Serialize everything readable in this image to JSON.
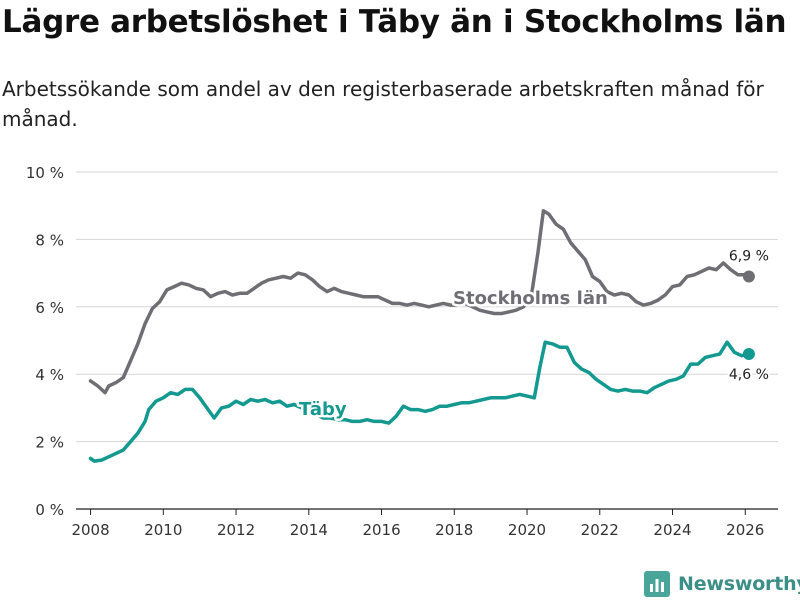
{
  "title": "Lägre arbetslöshet i Täby än i Stockholms län",
  "subtitle": "Arbetssökande som andel av den registerbaserade arbetskraften månad för månad.",
  "logo": {
    "text": "Newsworthy",
    "icon": "bar-chart-icon"
  },
  "colors": {
    "stockholm": "#6e6e74",
    "taby": "#13998f",
    "grid": "#d6d6d6",
    "axis": "#222222"
  },
  "chart_data": {
    "type": "line",
    "ylim": [
      0,
      10
    ],
    "xlim": [
      2007.6,
      2026.9
    ],
    "y_ticks": [
      0,
      2,
      4,
      6,
      8,
      10
    ],
    "y_tick_labels": [
      "0 %",
      "2 %",
      "4 %",
      "6 %",
      "8 %",
      "10 %"
    ],
    "x_ticks": [
      2008,
      2010,
      2012,
      2014,
      2016,
      2018,
      2020,
      2022,
      2024,
      2026
    ],
    "x_tick_labels": [
      "2008",
      "2010",
      "2012",
      "2014",
      "2016",
      "2018",
      "2020",
      "2022",
      "2024",
      "2026"
    ],
    "grid": true,
    "series": [
      {
        "name": "Stockholms län",
        "label": "Stockholms län",
        "end_label": "6,9 %",
        "points": [
          [
            2008,
            3.8
          ],
          [
            2008.2,
            3.65
          ],
          [
            2008.4,
            3.45
          ],
          [
            2008.5,
            3.65
          ],
          [
            2008.7,
            3.75
          ],
          [
            2008.9,
            3.9
          ],
          [
            2009.1,
            4.4
          ],
          [
            2009.3,
            4.9
          ],
          [
            2009.5,
            5.5
          ],
          [
            2009.7,
            5.95
          ],
          [
            2009.9,
            6.15
          ],
          [
            2010.1,
            6.5
          ],
          [
            2010.3,
            6.6
          ],
          [
            2010.5,
            6.7
          ],
          [
            2010.7,
            6.65
          ],
          [
            2010.9,
            6.55
          ],
          [
            2011.1,
            6.5
          ],
          [
            2011.3,
            6.3
          ],
          [
            2011.5,
            6.4
          ],
          [
            2011.7,
            6.45
          ],
          [
            2011.9,
            6.35
          ],
          [
            2012.1,
            6.4
          ],
          [
            2012.3,
            6.4
          ],
          [
            2012.5,
            6.55
          ],
          [
            2012.7,
            6.7
          ],
          [
            2012.9,
            6.8
          ],
          [
            2013.1,
            6.85
          ],
          [
            2013.3,
            6.9
          ],
          [
            2013.5,
            6.85
          ],
          [
            2013.7,
            7.0
          ],
          [
            2013.9,
            6.95
          ],
          [
            2014.1,
            6.8
          ],
          [
            2014.3,
            6.6
          ],
          [
            2014.5,
            6.45
          ],
          [
            2014.7,
            6.55
          ],
          [
            2014.9,
            6.45
          ],
          [
            2015.1,
            6.4
          ],
          [
            2015.3,
            6.35
          ],
          [
            2015.5,
            6.3
          ],
          [
            2015.7,
            6.3
          ],
          [
            2015.9,
            6.3
          ],
          [
            2016.1,
            6.2
          ],
          [
            2016.3,
            6.1
          ],
          [
            2016.5,
            6.1
          ],
          [
            2016.7,
            6.05
          ],
          [
            2016.9,
            6.1
          ],
          [
            2017.1,
            6.05
          ],
          [
            2017.3,
            6.0
          ],
          [
            2017.5,
            6.05
          ],
          [
            2017.7,
            6.1
          ],
          [
            2017.9,
            6.05
          ],
          [
            2018.1,
            6.05
          ],
          [
            2018.3,
            6.1
          ],
          [
            2018.5,
            6.0
          ],
          [
            2018.7,
            5.9
          ],
          [
            2018.9,
            5.85
          ],
          [
            2019.1,
            5.8
          ],
          [
            2019.3,
            5.8
          ],
          [
            2019.5,
            5.85
          ],
          [
            2019.7,
            5.9
          ],
          [
            2019.9,
            6.0
          ],
          [
            2020.1,
            6.2
          ],
          [
            2020.3,
            7.6
          ],
          [
            2020.45,
            8.85
          ],
          [
            2020.6,
            8.75
          ],
          [
            2020.8,
            8.45
          ],
          [
            2021.0,
            8.3
          ],
          [
            2021.2,
            7.9
          ],
          [
            2021.4,
            7.65
          ],
          [
            2021.6,
            7.4
          ],
          [
            2021.8,
            6.9
          ],
          [
            2022.0,
            6.75
          ],
          [
            2022.2,
            6.45
          ],
          [
            2022.4,
            6.35
          ],
          [
            2022.6,
            6.4
          ],
          [
            2022.8,
            6.35
          ],
          [
            2023.0,
            6.15
          ],
          [
            2023.2,
            6.05
          ],
          [
            2023.4,
            6.1
          ],
          [
            2023.6,
            6.2
          ],
          [
            2023.8,
            6.35
          ],
          [
            2024.0,
            6.6
          ],
          [
            2024.2,
            6.65
          ],
          [
            2024.4,
            6.9
          ],
          [
            2024.6,
            6.95
          ],
          [
            2024.8,
            7.05
          ],
          [
            2025.0,
            7.15
          ],
          [
            2025.2,
            7.1
          ],
          [
            2025.4,
            7.3
          ],
          [
            2025.6,
            7.1
          ],
          [
            2025.8,
            6.95
          ],
          [
            2026.0,
            6.95
          ],
          [
            2026.1,
            6.9
          ]
        ]
      },
      {
        "name": "Täby",
        "label": "Täby",
        "end_label": "4,6 %",
        "points": [
          [
            2008,
            1.5
          ],
          [
            2008.1,
            1.42
          ],
          [
            2008.3,
            1.45
          ],
          [
            2008.5,
            1.55
          ],
          [
            2008.7,
            1.65
          ],
          [
            2008.9,
            1.75
          ],
          [
            2009.1,
            2.0
          ],
          [
            2009.3,
            2.25
          ],
          [
            2009.5,
            2.6
          ],
          [
            2009.6,
            2.95
          ],
          [
            2009.8,
            3.2
          ],
          [
            2010.0,
            3.3
          ],
          [
            2010.2,
            3.45
          ],
          [
            2010.4,
            3.4
          ],
          [
            2010.6,
            3.55
          ],
          [
            2010.8,
            3.55
          ],
          [
            2011.0,
            3.3
          ],
          [
            2011.2,
            3.0
          ],
          [
            2011.4,
            2.7
          ],
          [
            2011.6,
            3.0
          ],
          [
            2011.8,
            3.05
          ],
          [
            2012.0,
            3.2
          ],
          [
            2012.2,
            3.1
          ],
          [
            2012.4,
            3.25
          ],
          [
            2012.6,
            3.2
          ],
          [
            2012.8,
            3.25
          ],
          [
            2013.0,
            3.15
          ],
          [
            2013.2,
            3.2
          ],
          [
            2013.4,
            3.05
          ],
          [
            2013.6,
            3.1
          ],
          [
            2013.8,
            3.0
          ],
          [
            2014.0,
            2.85
          ],
          [
            2014.2,
            2.8
          ],
          [
            2014.4,
            2.7
          ],
          [
            2014.6,
            2.7
          ],
          [
            2014.8,
            2.65
          ],
          [
            2015.0,
            2.65
          ],
          [
            2015.2,
            2.6
          ],
          [
            2015.4,
            2.6
          ],
          [
            2015.6,
            2.65
          ],
          [
            2015.8,
            2.6
          ],
          [
            2016.0,
            2.6
          ],
          [
            2016.2,
            2.55
          ],
          [
            2016.4,
            2.75
          ],
          [
            2016.6,
            3.05
          ],
          [
            2016.8,
            2.95
          ],
          [
            2017.0,
            2.95
          ],
          [
            2017.2,
            2.9
          ],
          [
            2017.4,
            2.95
          ],
          [
            2017.6,
            3.05
          ],
          [
            2017.8,
            3.05
          ],
          [
            2018.0,
            3.1
          ],
          [
            2018.2,
            3.15
          ],
          [
            2018.4,
            3.15
          ],
          [
            2018.6,
            3.2
          ],
          [
            2018.8,
            3.25
          ],
          [
            2019.0,
            3.3
          ],
          [
            2019.2,
            3.3
          ],
          [
            2019.4,
            3.3
          ],
          [
            2019.6,
            3.35
          ],
          [
            2019.8,
            3.4
          ],
          [
            2020.0,
            3.35
          ],
          [
            2020.2,
            3.3
          ],
          [
            2020.35,
            4.2
          ],
          [
            2020.5,
            4.95
          ],
          [
            2020.7,
            4.9
          ],
          [
            2020.9,
            4.8
          ],
          [
            2021.1,
            4.8
          ],
          [
            2021.3,
            4.35
          ],
          [
            2021.5,
            4.15
          ],
          [
            2021.7,
            4.05
          ],
          [
            2021.9,
            3.85
          ],
          [
            2022.1,
            3.7
          ],
          [
            2022.3,
            3.55
          ],
          [
            2022.5,
            3.5
          ],
          [
            2022.7,
            3.55
          ],
          [
            2022.9,
            3.5
          ],
          [
            2023.1,
            3.5
          ],
          [
            2023.3,
            3.45
          ],
          [
            2023.5,
            3.6
          ],
          [
            2023.7,
            3.7
          ],
          [
            2023.9,
            3.8
          ],
          [
            2024.1,
            3.85
          ],
          [
            2024.3,
            3.95
          ],
          [
            2024.5,
            4.3
          ],
          [
            2024.7,
            4.3
          ],
          [
            2024.9,
            4.5
          ],
          [
            2025.1,
            4.55
          ],
          [
            2025.3,
            4.6
          ],
          [
            2025.5,
            4.95
          ],
          [
            2025.7,
            4.65
          ],
          [
            2025.9,
            4.55
          ],
          [
            2026.1,
            4.6
          ]
        ]
      }
    ]
  }
}
